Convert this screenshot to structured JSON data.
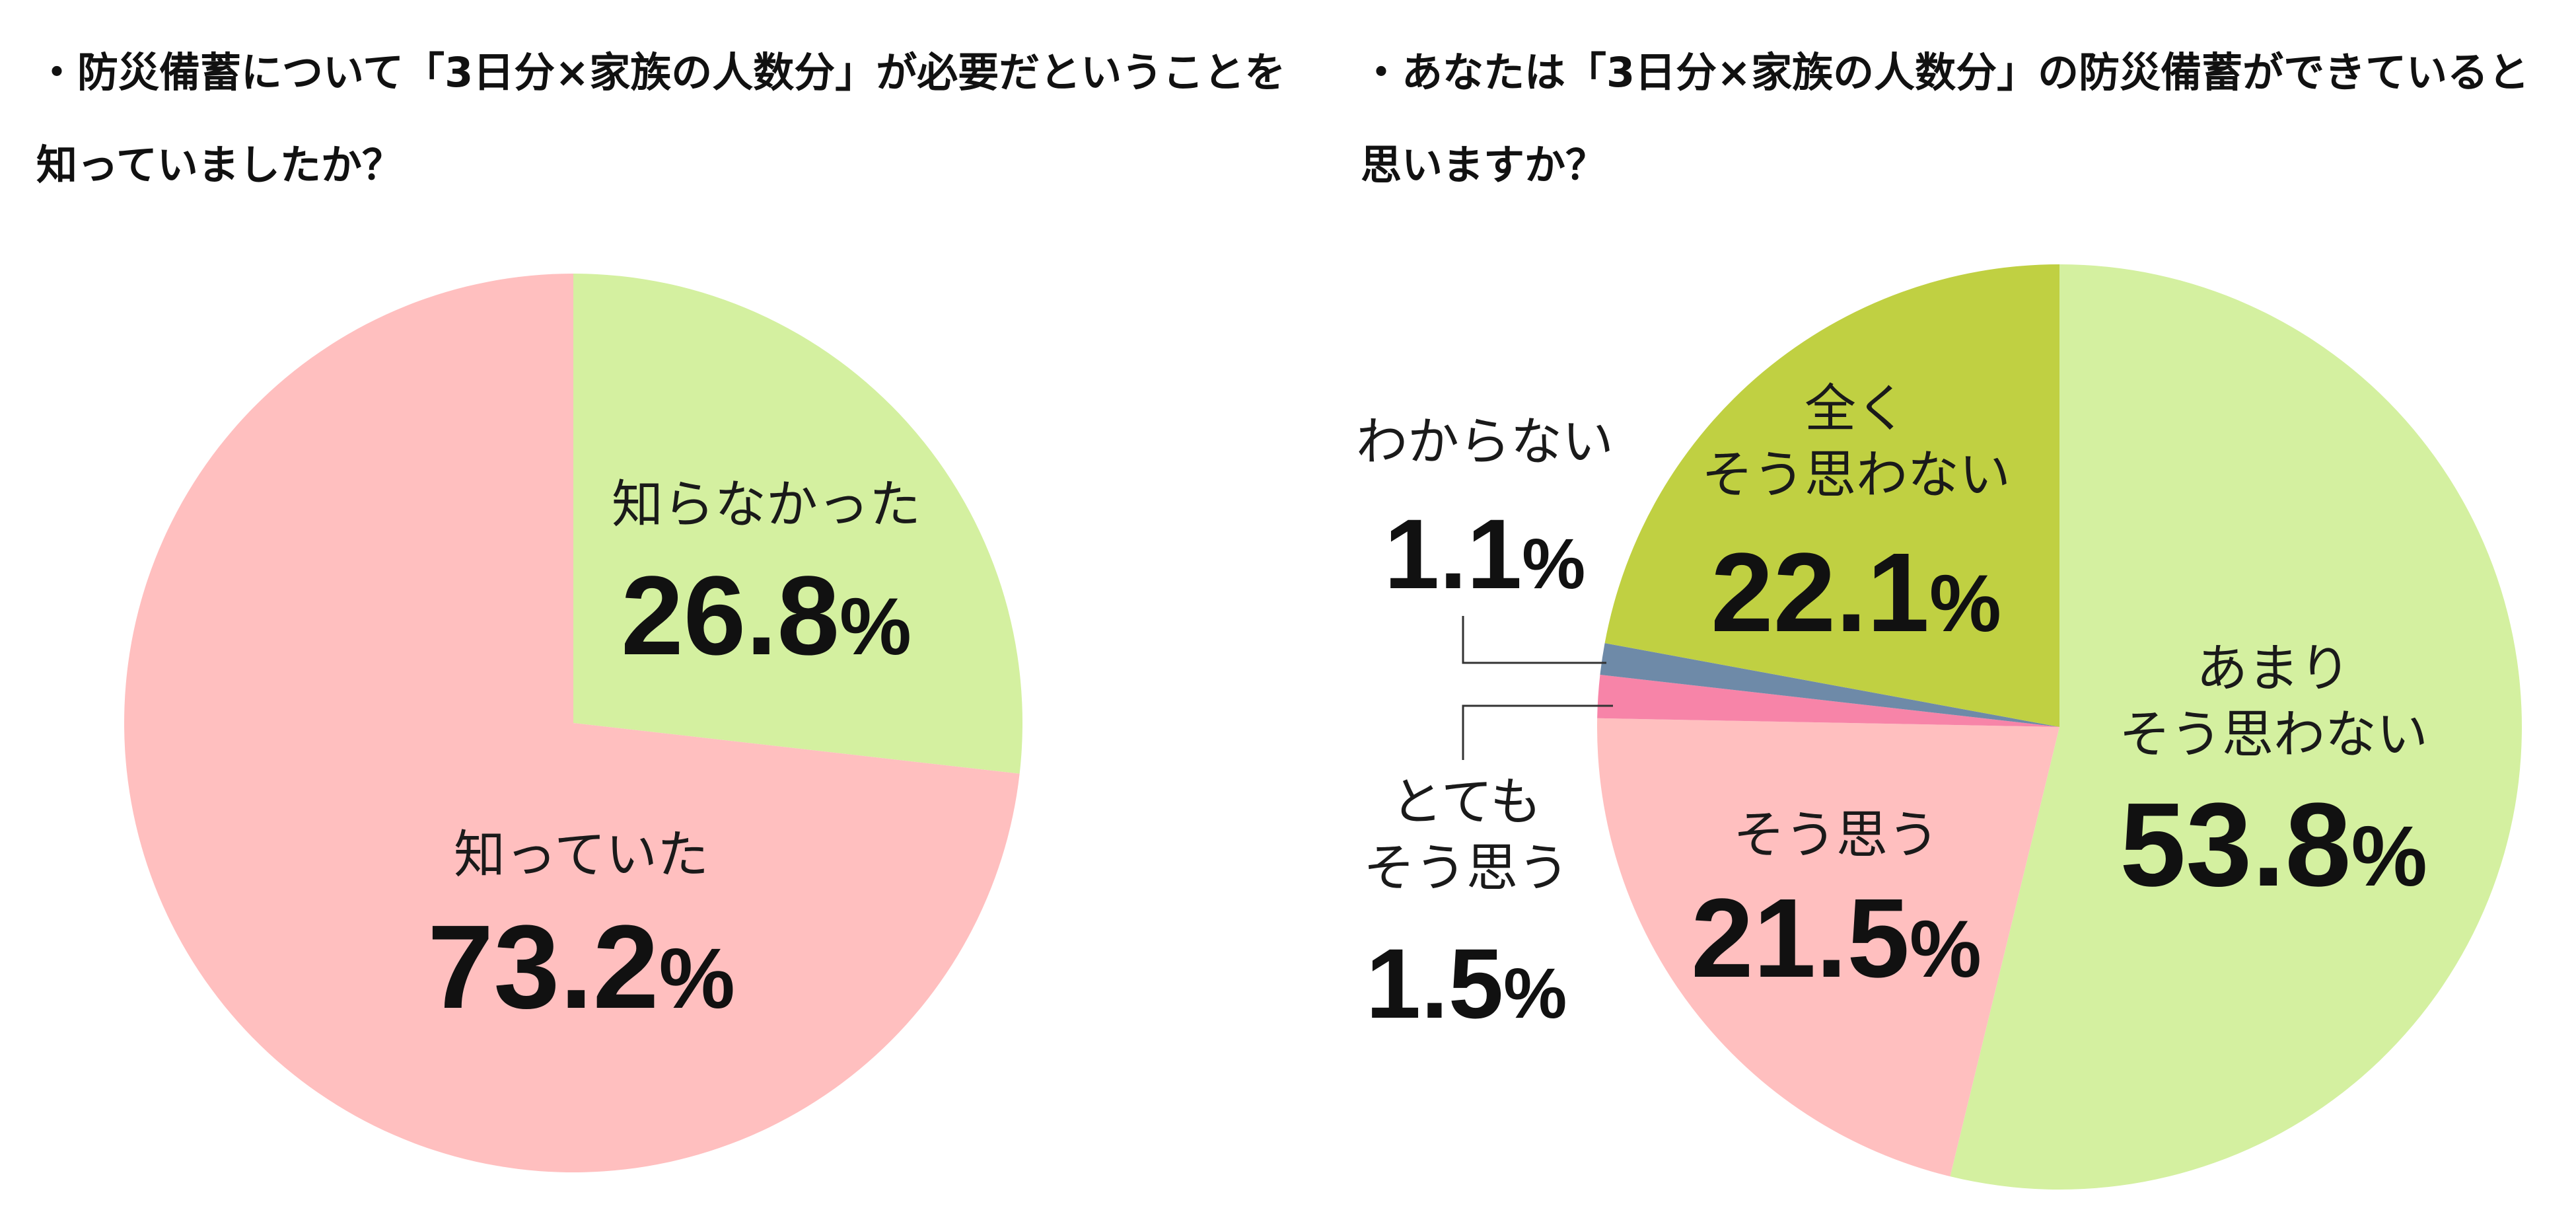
{
  "chart_data": [
    {
      "type": "pie",
      "title": "・防災備蓄について「3日分×家族の人数分」が必要だということを知っていましたか？",
      "slices": [
        {
          "label": "知らなかった",
          "value": 26.8,
          "value_text": "26.8",
          "color": "#d4f0a0"
        },
        {
          "label": "知っていた",
          "value": 73.2,
          "value_text": "73.2",
          "color": "#ffbfbf"
        }
      ],
      "unit": "%"
    },
    {
      "type": "pie",
      "title": "・あなたは「3日分×家族の人数分」の防災備蓄ができていると思いますか？",
      "slices": [
        {
          "label": "あまりそう思わない",
          "label_lines": [
            "あまり",
            "そう思わない"
          ],
          "value": 53.8,
          "value_text": "53.8",
          "color": "#d4f0a0"
        },
        {
          "label": "そう思う",
          "label_lines": [
            "そう思う"
          ],
          "value": 21.5,
          "value_text": "21.5",
          "color": "#ffbfbf"
        },
        {
          "label": "とてもそう思う",
          "label_lines": [
            "とても",
            "そう思う"
          ],
          "value": 1.5,
          "value_text": "1.5",
          "color": "#f784a8"
        },
        {
          "label": "わからない",
          "label_lines": [
            "わからない"
          ],
          "value": 1.1,
          "value_text": "1.1",
          "color": "#6e8aa8"
        },
        {
          "label": "全くそう思わない",
          "label_lines": [
            "全く",
            "そう思わない"
          ],
          "value": 22.1,
          "value_text": "22.1",
          "color": "#c0d042"
        }
      ],
      "unit": "%"
    }
  ]
}
